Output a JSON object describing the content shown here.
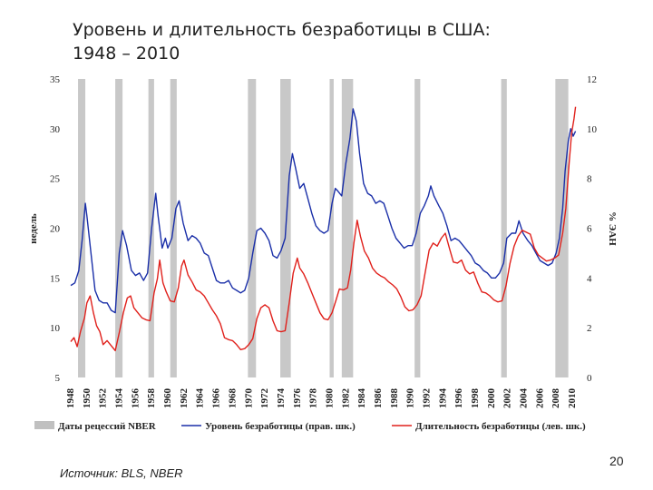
{
  "slide": {
    "title_line1": "Уровень и длительность безработицы в США:",
    "title_line2": "1948 – 2010",
    "source": "Источник: BLS, NBER",
    "page_number": "20"
  },
  "chart_data": {
    "type": "line",
    "title": "Уровень и длительность безработицы в США: 1948 – 2010",
    "left_axis": {
      "label": "недель",
      "range": [
        5,
        35
      ],
      "ticks": [
        "5",
        "10",
        "15",
        "20",
        "25",
        "30",
        "35"
      ]
    },
    "right_axis": {
      "label": "% ЭАН",
      "range": [
        0,
        12
      ],
      "ticks": [
        "0",
        "2",
        "4",
        "6",
        "8",
        "10",
        "12"
      ]
    },
    "x_axis": {
      "range": [
        1948,
        2011
      ],
      "ticks": [
        "1948",
        "1950",
        "1952",
        "1954",
        "1956",
        "1958",
        "1960",
        "1962",
        "1964",
        "1966",
        "1968",
        "1970",
        "1972",
        "1974",
        "1976",
        "1978",
        "1980",
        "1982",
        "1984",
        "1986",
        "1988",
        "1990",
        "1992",
        "1994",
        "1996",
        "1998",
        "2000",
        "2002",
        "2004",
        "2006",
        "2008",
        "2010"
      ]
    },
    "grid": false,
    "legend_position": "bottom",
    "legend": {
      "recessions": "Даты рецессий NBER",
      "rate": "Уровень безработицы (прав. шк.)",
      "duration": "Длительность безработицы (лев. шк.)"
    },
    "recessions": [
      [
        1948.9,
        1949.8
      ],
      [
        1953.5,
        1954.4
      ],
      [
        1957.6,
        1958.3
      ],
      [
        1960.3,
        1961.1
      ],
      [
        1969.9,
        1970.9
      ],
      [
        1973.9,
        1975.2
      ],
      [
        1980.0,
        1980.5
      ],
      [
        1981.5,
        1982.9
      ],
      [
        1990.5,
        1991.2
      ],
      [
        2001.2,
        2001.9
      ],
      [
        2007.9,
        2009.5
      ]
    ],
    "series": [
      {
        "name": "Уровень безработицы (прав. шк.)",
        "axis": "right",
        "color": "#1a2fa8",
        "points": [
          [
            1948,
            3.7
          ],
          [
            1948.5,
            3.8
          ],
          [
            1949,
            4.3
          ],
          [
            1949.4,
            5.5
          ],
          [
            1949.8,
            7.0
          ],
          [
            1950,
            6.5
          ],
          [
            1950.5,
            5.0
          ],
          [
            1951,
            3.5
          ],
          [
            1951.5,
            3.1
          ],
          [
            1952,
            3.0
          ],
          [
            1952.5,
            3.0
          ],
          [
            1953,
            2.7
          ],
          [
            1953.5,
            2.6
          ],
          [
            1954,
            5.0
          ],
          [
            1954.4,
            5.9
          ],
          [
            1954.9,
            5.3
          ],
          [
            1955.5,
            4.3
          ],
          [
            1956,
            4.1
          ],
          [
            1956.5,
            4.2
          ],
          [
            1957,
            3.9
          ],
          [
            1957.5,
            4.2
          ],
          [
            1958,
            6.0
          ],
          [
            1958.5,
            7.4
          ],
          [
            1958.8,
            6.5
          ],
          [
            1959.3,
            5.2
          ],
          [
            1959.7,
            5.6
          ],
          [
            1960,
            5.2
          ],
          [
            1960.5,
            5.6
          ],
          [
            1961,
            6.8
          ],
          [
            1961.4,
            7.1
          ],
          [
            1961.9,
            6.2
          ],
          [
            1962.5,
            5.5
          ],
          [
            1963,
            5.7
          ],
          [
            1963.5,
            5.6
          ],
          [
            1964,
            5.4
          ],
          [
            1964.5,
            5.0
          ],
          [
            1965,
            4.9
          ],
          [
            1965.5,
            4.4
          ],
          [
            1966,
            3.9
          ],
          [
            1966.5,
            3.8
          ],
          [
            1967,
            3.8
          ],
          [
            1967.5,
            3.9
          ],
          [
            1968,
            3.6
          ],
          [
            1968.5,
            3.5
          ],
          [
            1969,
            3.4
          ],
          [
            1969.5,
            3.5
          ],
          [
            1970,
            4.0
          ],
          [
            1970.5,
            5.0
          ],
          [
            1971,
            5.9
          ],
          [
            1971.5,
            6.0
          ],
          [
            1972,
            5.8
          ],
          [
            1972.5,
            5.5
          ],
          [
            1973,
            4.9
          ],
          [
            1973.5,
            4.8
          ],
          [
            1974,
            5.1
          ],
          [
            1974.5,
            5.6
          ],
          [
            1975,
            8.1
          ],
          [
            1975.4,
            9.0
          ],
          [
            1975.8,
            8.4
          ],
          [
            1976.3,
            7.6
          ],
          [
            1976.8,
            7.8
          ],
          [
            1977.3,
            7.2
          ],
          [
            1977.8,
            6.6
          ],
          [
            1978.3,
            6.1
          ],
          [
            1978.8,
            5.9
          ],
          [
            1979.3,
            5.8
          ],
          [
            1979.8,
            5.9
          ],
          [
            1980.3,
            7.0
          ],
          [
            1980.7,
            7.6
          ],
          [
            1981,
            7.5
          ],
          [
            1981.5,
            7.3
          ],
          [
            1982,
            8.6
          ],
          [
            1982.5,
            9.6
          ],
          [
            1982.9,
            10.8
          ],
          [
            1983.3,
            10.3
          ],
          [
            1983.7,
            9.0
          ],
          [
            1984.2,
            7.8
          ],
          [
            1984.7,
            7.4
          ],
          [
            1985.2,
            7.3
          ],
          [
            1985.7,
            7.0
          ],
          [
            1986.2,
            7.1
          ],
          [
            1986.7,
            7.0
          ],
          [
            1987.2,
            6.5
          ],
          [
            1987.7,
            6.0
          ],
          [
            1988.2,
            5.6
          ],
          [
            1988.7,
            5.4
          ],
          [
            1989.2,
            5.2
          ],
          [
            1989.7,
            5.3
          ],
          [
            1990.2,
            5.3
          ],
          [
            1990.7,
            5.8
          ],
          [
            1991.2,
            6.6
          ],
          [
            1991.7,
            6.9
          ],
          [
            1992.2,
            7.3
          ],
          [
            1992.5,
            7.7
          ],
          [
            1992.9,
            7.3
          ],
          [
            1993.5,
            6.9
          ],
          [
            1994,
            6.6
          ],
          [
            1994.5,
            6.1
          ],
          [
            1995,
            5.5
          ],
          [
            1995.5,
            5.6
          ],
          [
            1996,
            5.5
          ],
          [
            1996.5,
            5.3
          ],
          [
            1997,
            5.1
          ],
          [
            1997.5,
            4.9
          ],
          [
            1998,
            4.6
          ],
          [
            1998.5,
            4.5
          ],
          [
            1999,
            4.3
          ],
          [
            1999.5,
            4.2
          ],
          [
            2000,
            4.0
          ],
          [
            2000.5,
            4.0
          ],
          [
            2001,
            4.2
          ],
          [
            2001.5,
            4.6
          ],
          [
            2001.9,
            5.6
          ],
          [
            2002.5,
            5.8
          ],
          [
            2003,
            5.8
          ],
          [
            2003.4,
            6.3
          ],
          [
            2003.9,
            5.8
          ],
          [
            2004.5,
            5.5
          ],
          [
            2005,
            5.3
          ],
          [
            2005.5,
            5.0
          ],
          [
            2006,
            4.7
          ],
          [
            2006.5,
            4.6
          ],
          [
            2007,
            4.5
          ],
          [
            2007.5,
            4.6
          ],
          [
            2008,
            5.0
          ],
          [
            2008.4,
            5.6
          ],
          [
            2008.8,
            6.8
          ],
          [
            2009.1,
            8.3
          ],
          [
            2009.5,
            9.5
          ],
          [
            2009.8,
            10.0
          ],
          [
            2010.1,
            9.7
          ],
          [
            2010.4,
            9.9
          ]
        ]
      },
      {
        "name": "Длительность безработицы (лев. шк.)",
        "axis": "left",
        "color": "#e0201b",
        "points": [
          [
            1948,
            8.6
          ],
          [
            1948.4,
            9.0
          ],
          [
            1948.8,
            8.1
          ],
          [
            1949.2,
            9.6
          ],
          [
            1949.7,
            11.0
          ],
          [
            1950,
            12.5
          ],
          [
            1950.4,
            13.2
          ],
          [
            1950.8,
            11.5
          ],
          [
            1951.2,
            10.2
          ],
          [
            1951.6,
            9.6
          ],
          [
            1952,
            8.3
          ],
          [
            1952.5,
            8.7
          ],
          [
            1953,
            8.2
          ],
          [
            1953.5,
            7.7
          ],
          [
            1954,
            9.5
          ],
          [
            1954.5,
            11.5
          ],
          [
            1955,
            13.0
          ],
          [
            1955.4,
            13.2
          ],
          [
            1955.8,
            12.0
          ],
          [
            1956.3,
            11.5
          ],
          [
            1956.8,
            11.0
          ],
          [
            1957.3,
            10.8
          ],
          [
            1957.8,
            10.7
          ],
          [
            1958.3,
            13.5
          ],
          [
            1958.7,
            14.9
          ],
          [
            1959,
            16.8
          ],
          [
            1959.4,
            14.5
          ],
          [
            1959.8,
            13.6
          ],
          [
            1960.3,
            12.7
          ],
          [
            1960.8,
            12.6
          ],
          [
            1961.3,
            14.0
          ],
          [
            1961.7,
            16.2
          ],
          [
            1962,
            16.8
          ],
          [
            1962.5,
            15.3
          ],
          [
            1963,
            14.6
          ],
          [
            1963.5,
            13.8
          ],
          [
            1964,
            13.6
          ],
          [
            1964.5,
            13.2
          ],
          [
            1965,
            12.5
          ],
          [
            1965.5,
            11.8
          ],
          [
            1966,
            11.2
          ],
          [
            1966.5,
            10.4
          ],
          [
            1967,
            9.0
          ],
          [
            1967.5,
            8.8
          ],
          [
            1968,
            8.7
          ],
          [
            1968.5,
            8.3
          ],
          [
            1969,
            7.8
          ],
          [
            1969.5,
            7.9
          ],
          [
            1970,
            8.3
          ],
          [
            1970.5,
            8.9
          ],
          [
            1971,
            10.9
          ],
          [
            1971.5,
            12.0
          ],
          [
            1972,
            12.3
          ],
          [
            1972.5,
            12.0
          ],
          [
            1973,
            10.7
          ],
          [
            1973.5,
            9.7
          ],
          [
            1974,
            9.6
          ],
          [
            1974.5,
            9.7
          ],
          [
            1975,
            12.5
          ],
          [
            1975.5,
            15.5
          ],
          [
            1976,
            17.0
          ],
          [
            1976.3,
            16.0
          ],
          [
            1976.8,
            15.4
          ],
          [
            1977.3,
            14.5
          ],
          [
            1977.8,
            13.5
          ],
          [
            1978.3,
            12.5
          ],
          [
            1978.8,
            11.5
          ],
          [
            1979.3,
            10.9
          ],
          [
            1979.8,
            10.8
          ],
          [
            1980.3,
            11.5
          ],
          [
            1980.8,
            12.8
          ],
          [
            1981.2,
            13.9
          ],
          [
            1981.7,
            13.8
          ],
          [
            1982.2,
            14.0
          ],
          [
            1982.6,
            15.8
          ],
          [
            1983,
            18.5
          ],
          [
            1983.4,
            20.8
          ],
          [
            1983.8,
            19.2
          ],
          [
            1984.3,
            17.7
          ],
          [
            1984.8,
            17.0
          ],
          [
            1985.3,
            16.0
          ],
          [
            1985.8,
            15.5
          ],
          [
            1986.3,
            15.2
          ],
          [
            1986.8,
            15.0
          ],
          [
            1987.3,
            14.6
          ],
          [
            1987.8,
            14.3
          ],
          [
            1988.3,
            13.9
          ],
          [
            1988.8,
            13.1
          ],
          [
            1989.3,
            12.1
          ],
          [
            1989.8,
            11.7
          ],
          [
            1990.3,
            11.8
          ],
          [
            1990.8,
            12.3
          ],
          [
            1991.3,
            13.2
          ],
          [
            1991.8,
            15.5
          ],
          [
            1992.3,
            17.8
          ],
          [
            1992.8,
            18.5
          ],
          [
            1993.3,
            18.2
          ],
          [
            1993.8,
            19.0
          ],
          [
            1994.3,
            19.5
          ],
          [
            1994.8,
            18.0
          ],
          [
            1995.3,
            16.6
          ],
          [
            1995.8,
            16.5
          ],
          [
            1996.3,
            16.8
          ],
          [
            1996.8,
            15.8
          ],
          [
            1997.3,
            15.4
          ],
          [
            1997.8,
            15.6
          ],
          [
            1998.3,
            14.5
          ],
          [
            1998.8,
            13.6
          ],
          [
            1999.3,
            13.5
          ],
          [
            1999.8,
            13.2
          ],
          [
            2000.3,
            12.8
          ],
          [
            2000.8,
            12.6
          ],
          [
            2001.3,
            12.7
          ],
          [
            2001.8,
            14.2
          ],
          [
            2002.3,
            16.5
          ],
          [
            2002.8,
            18.2
          ],
          [
            2003.3,
            19.2
          ],
          [
            2003.8,
            19.8
          ],
          [
            2004.3,
            19.6
          ],
          [
            2004.8,
            19.4
          ],
          [
            2005.3,
            18.0
          ],
          [
            2005.8,
            17.3
          ],
          [
            2006.3,
            17.0
          ],
          [
            2006.8,
            16.7
          ],
          [
            2007.3,
            16.8
          ],
          [
            2007.8,
            17.0
          ],
          [
            2008.3,
            17.3
          ],
          [
            2008.8,
            19.5
          ],
          [
            2009.2,
            22.0
          ],
          [
            2009.6,
            26.5
          ],
          [
            2009.9,
            29.5
          ],
          [
            2010.2,
            31.0
          ],
          [
            2010.4,
            32.2
          ]
        ]
      }
    ]
  }
}
